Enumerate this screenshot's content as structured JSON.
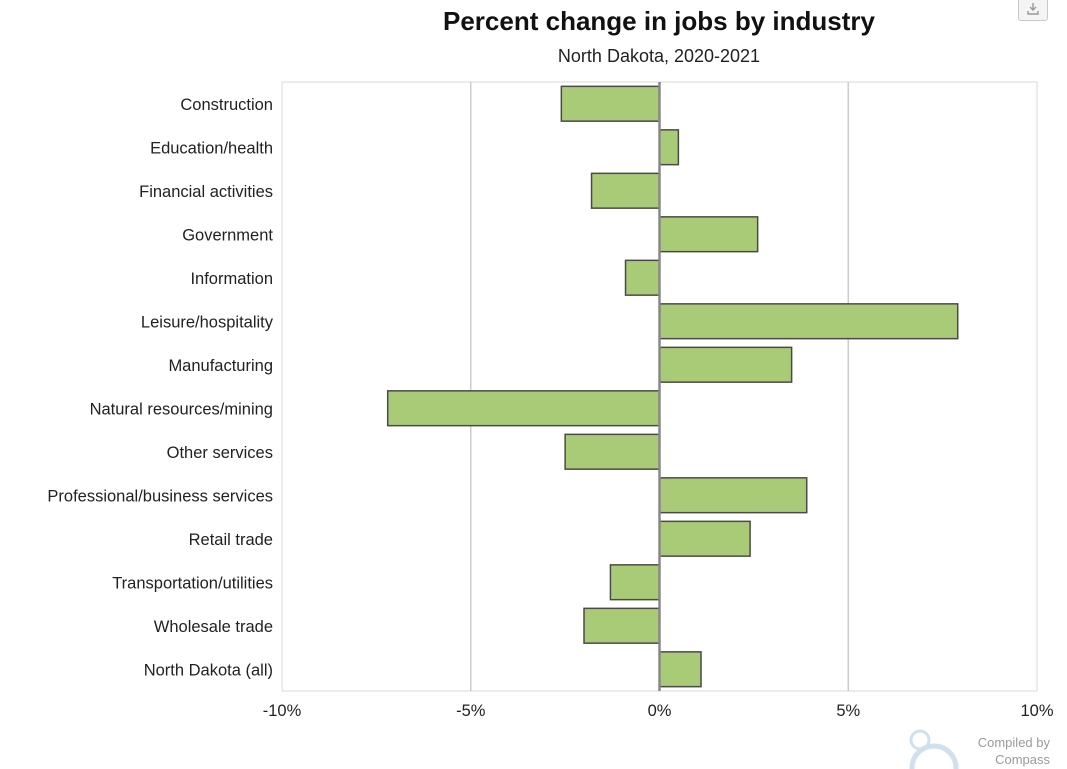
{
  "chart_data": {
    "type": "bar",
    "orientation": "horizontal",
    "title": "Percent change in jobs by industry",
    "subtitle": "North Dakota, 2020-2021",
    "categories": [
      "Construction",
      "Education/health",
      "Financial activities",
      "Government",
      "Information",
      "Leisure/hospitality",
      "Manufacturing",
      "Natural resources/mining",
      "Other services",
      "Professional/business services",
      "Retail trade",
      "Transportation/utilities",
      "Wholesale trade",
      "North Dakota (all)"
    ],
    "values": [
      -2.6,
      0.5,
      -1.8,
      2.6,
      -0.9,
      7.9,
      3.5,
      -7.2,
      -2.5,
      3.9,
      2.4,
      -1.3,
      -2.0,
      1.1
    ],
    "xlim": [
      -10,
      10
    ],
    "xticks": [
      -10,
      -5,
      0,
      5,
      10
    ],
    "xtick_labels": [
      "-10%",
      "-5%",
      "0%",
      "5%",
      "10%"
    ],
    "grid": true,
    "legend": false,
    "bar_color": "#a9cb78",
    "bar_edge_color": "#4a4a4a"
  },
  "credit": {
    "line1": "Compiled by",
    "line2": "Compass"
  },
  "toolbar": {
    "download_icon": "download-icon"
  }
}
